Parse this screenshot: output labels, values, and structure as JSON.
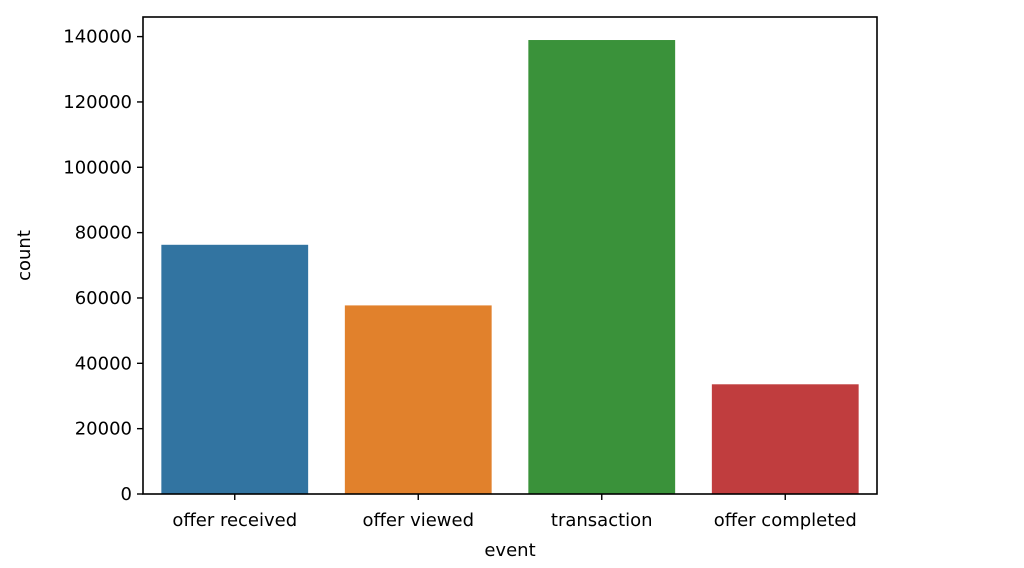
{
  "chart_data": {
    "type": "bar",
    "categories": [
      "offer received",
      "offer viewed",
      "transaction",
      "offer completed"
    ],
    "values": [
      76277,
      57725,
      138953,
      33579
    ],
    "colors": [
      "#3274a1",
      "#e1812c",
      "#3a923a",
      "#c03d3e"
    ],
    "xlabel": "event",
    "ylabel": "count",
    "ylim": [
      0,
      146000
    ],
    "yticks": [
      0,
      20000,
      40000,
      60000,
      80000,
      100000,
      120000,
      140000
    ],
    "ytick_labels": [
      "0",
      "20000",
      "40000",
      "60000",
      "80000",
      "100000",
      "120000",
      "140000"
    ],
    "grid": false,
    "legend": "none"
  }
}
